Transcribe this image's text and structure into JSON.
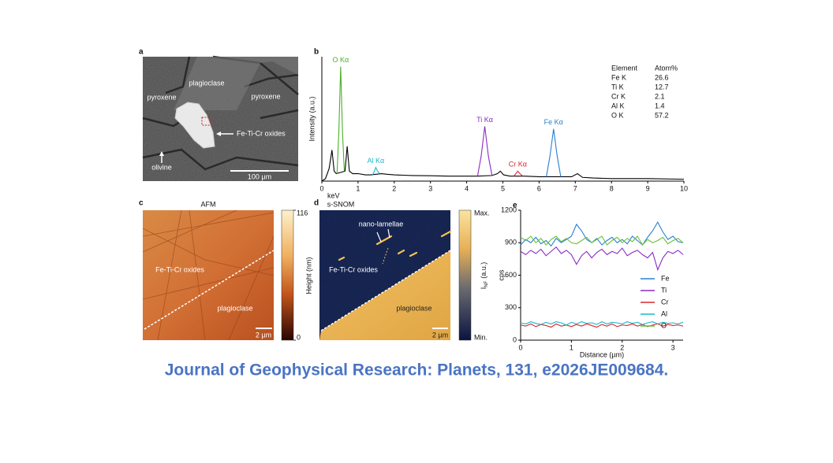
{
  "panel_a": {
    "label": "a",
    "annotations": [
      "plagioclase",
      "pyroxene",
      "pyroxene",
      "Fe-Ti-Cr oxides",
      "olivine"
    ],
    "scale_bar": "100 µm"
  },
  "chart_data": [
    {
      "type": "line",
      "panel": "b",
      "xlabel": "keV",
      "ylabel": "Intensity (a.u.)",
      "xlim": [
        0,
        10
      ],
      "xticks": [
        0,
        1,
        2,
        3,
        4,
        5,
        6,
        7,
        8,
        9,
        10
      ],
      "ylim": [
        0,
        100
      ],
      "color": "#000000",
      "x": [
        0,
        0.1,
        0.2,
        0.28,
        0.34,
        0.4,
        0.64,
        0.7,
        0.76,
        0.85,
        1.0,
        1.2,
        1.35,
        1.65,
        1.8,
        2.0,
        2.5,
        3.0,
        3.5,
        4.0,
        4.3,
        4.7,
        4.85,
        4.93,
        5.02,
        5.2,
        5.6,
        6.0,
        6.2,
        6.6,
        6.9,
        7.06,
        7.2,
        7.5,
        8,
        9,
        10
      ],
      "values": [
        0,
        2,
        10,
        25,
        8,
        6,
        8,
        28,
        8,
        6,
        6,
        5,
        5,
        6,
        5.5,
        5,
        4.5,
        4.3,
        4,
        4,
        4,
        4.5,
        6,
        8,
        5,
        4,
        4,
        3.5,
        3.5,
        3.5,
        3.5,
        6,
        3,
        2.5,
        2,
        2,
        1.5
      ],
      "peaks": [
        {
          "label": "O Kα",
          "color": "#4caf2a",
          "x": [
            0.42,
            0.47,
            0.52,
            0.57,
            0.62
          ],
          "values": [
            6,
            40,
            92,
            40,
            8
          ]
        },
        {
          "label": "Al Kα",
          "color": "#1fb5c8",
          "x": [
            1.4,
            1.45,
            1.49,
            1.54,
            1.6
          ],
          "values": [
            5,
            8,
            11,
            8,
            6
          ]
        },
        {
          "label": "Ti Kα",
          "color": "#8a2bc2",
          "x": [
            4.3,
            4.4,
            4.5,
            4.6,
            4.7
          ],
          "values": [
            4,
            20,
            44,
            20,
            4.5
          ]
        },
        {
          "label": "Cr Kα",
          "color": "#d9262b",
          "x": [
            5.3,
            5.36,
            5.41,
            5.47,
            5.55
          ],
          "values": [
            4,
            6,
            8,
            6,
            4
          ]
        },
        {
          "label": "Fe Kα",
          "color": "#2a7fd0",
          "x": [
            6.2,
            6.3,
            6.4,
            6.5,
            6.6
          ],
          "values": [
            3.5,
            20,
            42,
            20,
            3.5
          ]
        }
      ],
      "table": {
        "header": [
          "Element",
          "Atom%"
        ],
        "rows": [
          [
            "Fe K",
            26.6
          ],
          [
            "Ti K",
            12.7
          ],
          [
            "Cr K",
            2.1
          ],
          [
            "Al K",
            1.4
          ],
          [
            "O K",
            57.2
          ]
        ]
      }
    },
    {
      "type": "line",
      "panel": "e",
      "xlabel": "Distance (µm)",
      "ylabel": "cps",
      "xlim": [
        0,
        3.2
      ],
      "xticks": [
        0,
        1,
        2,
        3
      ],
      "ylim": [
        0,
        1200
      ],
      "yticks": [
        0,
        300,
        600,
        900,
        1200
      ],
      "legend": "right",
      "x": [
        0,
        0.1,
        0.2,
        0.3,
        0.4,
        0.5,
        0.6,
        0.7,
        0.8,
        0.9,
        1.0,
        1.1,
        1.2,
        1.3,
        1.4,
        1.5,
        1.6,
        1.7,
        1.8,
        1.9,
        2.0,
        2.1,
        2.2,
        2.3,
        2.4,
        2.5,
        2.6,
        2.7,
        2.8,
        2.9,
        3.0,
        3.1,
        3.2
      ],
      "series": [
        {
          "name": "Fe",
          "color": "#2a7fd0",
          "values": [
            880,
            930,
            900,
            950,
            890,
            920,
            870,
            940,
            900,
            930,
            960,
            1070,
            1010,
            930,
            900,
            940,
            880,
            920,
            950,
            900,
            930,
            890,
            960,
            920,
            880,
            950,
            1010,
            1090,
            1000,
            930,
            960,
            910,
            900
          ]
        },
        {
          "name": "Ti",
          "color": "#8a2bc2",
          "values": [
            820,
            790,
            830,
            800,
            840,
            780,
            820,
            860,
            800,
            830,
            790,
            700,
            780,
            820,
            760,
            810,
            840,
            790,
            820,
            800,
            850,
            780,
            810,
            830,
            790,
            760,
            810,
            650,
            760,
            820,
            800,
            830,
            790
          ]
        },
        {
          "name": "Cr",
          "color": "#d9262b",
          "values": [
            140,
            130,
            150,
            125,
            145,
            135,
            120,
            150,
            130,
            140,
            125,
            145,
            130,
            150,
            135,
            120,
            145,
            130,
            150,
            125,
            140,
            135,
            150,
            130,
            145,
            125,
            140,
            150,
            130,
            145,
            135,
            140,
            130
          ]
        },
        {
          "name": "Al",
          "color": "#1fb5c8",
          "values": [
            160,
            150,
            170,
            155,
            145,
            165,
            150,
            170,
            160,
            140,
            165,
            150,
            170,
            155,
            160,
            145,
            170,
            150,
            165,
            160,
            150,
            170,
            155,
            165,
            145,
            160,
            170,
            150,
            165,
            155,
            160,
            150,
            165
          ]
        },
        {
          "name": "O",
          "color": "#6abf3a",
          "values": [
            950,
            920,
            960,
            900,
            940,
            880,
            930,
            960,
            910,
            940,
            900,
            890,
            920,
            950,
            900,
            930,
            960,
            880,
            920,
            950,
            900,
            940,
            910,
            960,
            880,
            930,
            900,
            920,
            950,
            890,
            920,
            940,
            900
          ]
        }
      ]
    }
  ],
  "panel_c": {
    "label": "c",
    "title": "AFM",
    "annotations": [
      "Fe-Ti-Cr oxides",
      "plagioclase"
    ],
    "scale_bar": "2 µm",
    "colorbar": {
      "label": "Height (nm)",
      "lim": [
        0,
        116
      ],
      "ticks": [
        0,
        116
      ]
    }
  },
  "panel_d": {
    "label": "d",
    "title": "s-SNOM",
    "annotations": [
      "nano-lamellae",
      "Fe-Ti-Cr oxides",
      "plagioclase"
    ],
    "scale_bar": "2 µm",
    "colorbar": {
      "label": "I",
      "label_sub": "NF",
      "label_unit": "(a.u.)",
      "max": "Max.",
      "min": "Min."
    }
  },
  "citation": "Journal of Geophysical Research: Planets, 131, e2026JE009684."
}
